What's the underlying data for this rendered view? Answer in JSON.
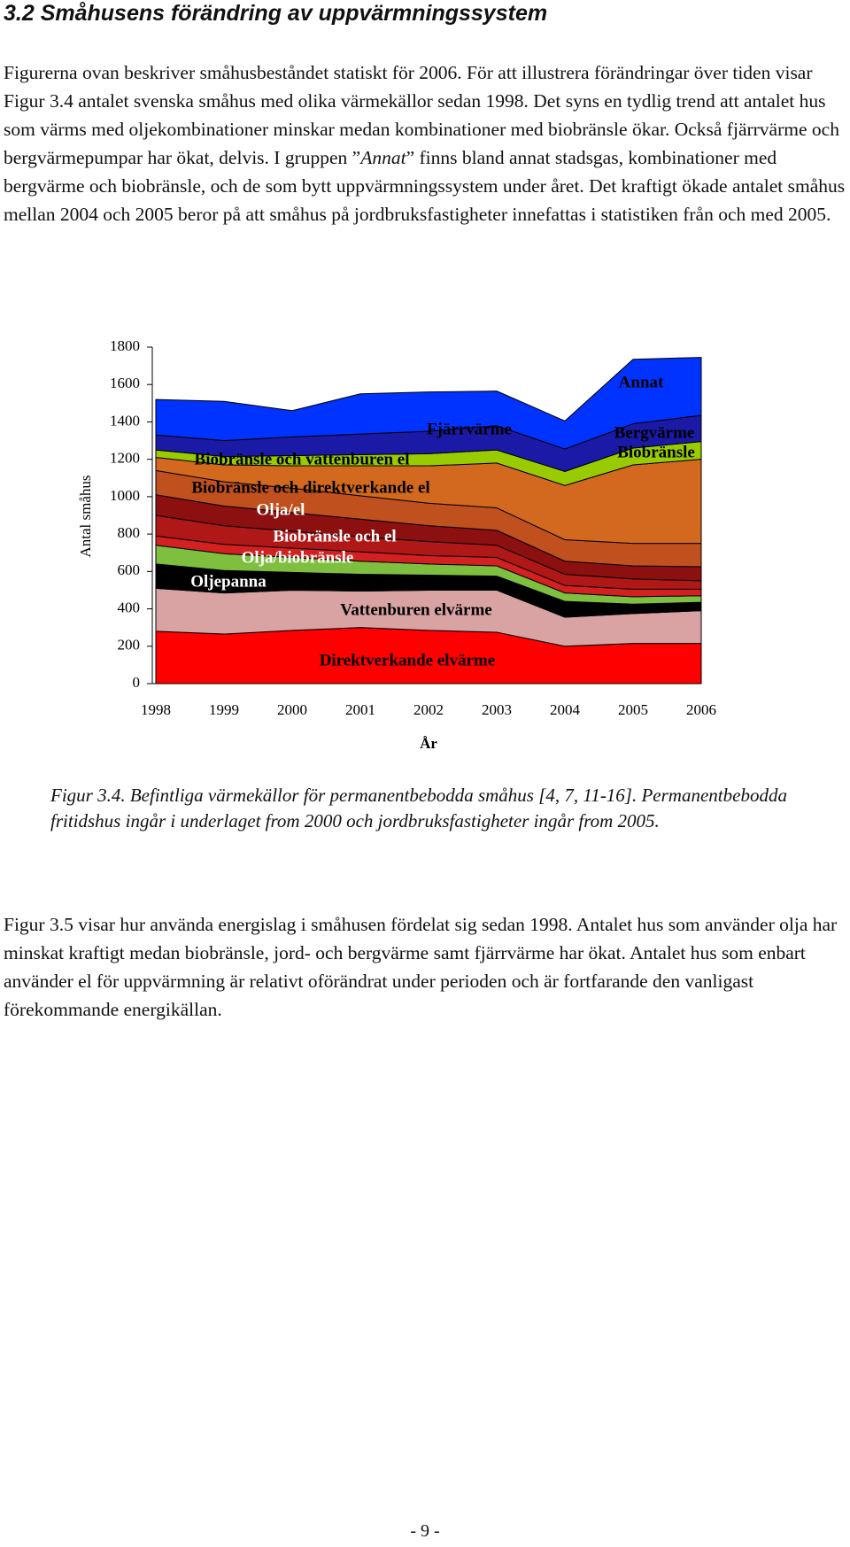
{
  "header": {
    "title": "3.2 Småhusens förändring av uppvärmningssystem"
  },
  "intro": {
    "before": "Figurerna ovan beskriver småhusbeståndet statiskt för 2006. För att illustrera förändringar över tiden visar Figur 3.4 antalet svenska småhus med olika värmekällor sedan 1998. Det syns en tydlig trend att antalet hus som värms med oljekombinationer minskar medan kombinationer med biobränsle ökar. Också fjärrvärme och bergvärmepumpar har ökat, delvis. I gruppen ”",
    "emphasis": "Annat",
    "after": "” finns bland annat stadsgas, kombinationer med bergvärme och biobränsle, och de som bytt uppvärmningssystem under året. Det kraftigt ökade antalet småhus mellan 2004 och 2005 beror på att småhus på jordbruksfastigheter innefattas i statistiken från och med 2005."
  },
  "chart_data": {
    "type": "stacked-area",
    "xlabel": "År",
    "ylabel": "Antal småhus",
    "x": [
      1998,
      1999,
      2000,
      2001,
      2002,
      2003,
      2004,
      2005,
      2006
    ],
    "xlim": [
      1998,
      2006
    ],
    "xticks": [
      1998,
      1999,
      2000,
      2001,
      2002,
      2003,
      2004,
      2005,
      2006
    ],
    "ylim": [
      0,
      1800
    ],
    "yticks": [
      0,
      200,
      400,
      600,
      800,
      1000,
      1200,
      1400,
      1600,
      1800
    ],
    "series": [
      {
        "name": "Direktverkande  elvärme",
        "color": "#ff0000",
        "values": [
          280,
          265,
          285,
          300,
          285,
          275,
          200,
          215,
          215
        ]
      },
      {
        "name": "Vattenburen elvärme",
        "color": "#d9a3a3",
        "values": [
          230,
          220,
          215,
          195,
          215,
          225,
          155,
          160,
          175
        ]
      },
      {
        "name": "Oljepanna",
        "color": "#000000",
        "values": [
          130,
          120,
          95,
          90,
          80,
          75,
          85,
          50,
          45
        ]
      },
      {
        "name": "Olja/biobränsle",
        "color": "#7fbf3f",
        "values": [
          100,
          90,
          80,
          70,
          60,
          55,
          45,
          40,
          35
        ]
      },
      {
        "name": "Biobränsle och el",
        "color": "#d42020",
        "values": [
          50,
          50,
          50,
          50,
          45,
          45,
          40,
          40,
          35
        ]
      },
      {
        "name": "Olja/el",
        "color": "#b01818",
        "values": [
          110,
          100,
          90,
          80,
          75,
          65,
          60,
          55,
          45
        ]
      },
      {
        "name": "Biobränsle och direktverkande el",
        "color": "#8c1010",
        "values": [
          110,
          105,
          100,
          95,
          85,
          80,
          70,
          70,
          75
        ]
      },
      {
        "name": "Biobränsle och vattenburen el",
        "color": "#c0501e",
        "values": [
          130,
          130,
          130,
          125,
          120,
          120,
          115,
          120,
          125
        ]
      },
      {
        "name": "Bergvärme",
        "color": "#d2691e",
        "values": [
          70,
          90,
          120,
          160,
          200,
          240,
          290,
          420,
          450
        ]
      },
      {
        "name": "Biobränsle",
        "color": "#99cc00",
        "values": [
          40,
          45,
          55,
          60,
          65,
          70,
          75,
          90,
          95
        ]
      },
      {
        "name": "Fjärrvärme",
        "color": "#1a1aa6",
        "values": [
          80,
          85,
          100,
          110,
          120,
          130,
          120,
          130,
          140
        ]
      },
      {
        "name": "Annat",
        "color": "#0033ff",
        "values": [
          190,
          210,
          140,
          215,
          210,
          185,
          150,
          345,
          310
        ]
      }
    ]
  },
  "caption": "Figur 3.4. Befintliga värmekällor för permanentbebodda småhus [4, 7, 11-16]. Permanentbebodda fritidshus ingår i underlaget from 2000 och jordbruksfastigheter ingår from 2005.",
  "paragraph": "Figur 3.5 visar hur använda energislag i småhusen fördelat sig sedan 1998. Antalet hus som använder olja har minskat kraftigt medan biobränsle, jord- och bergvärme samt fjärrvärme har ökat. Antalet hus som enbart använder el för uppvärmning är relativt oförändrat under perioden och är fortfarande den vanligast förekommande energikällan.",
  "footer": {
    "page": "- 9 -"
  }
}
